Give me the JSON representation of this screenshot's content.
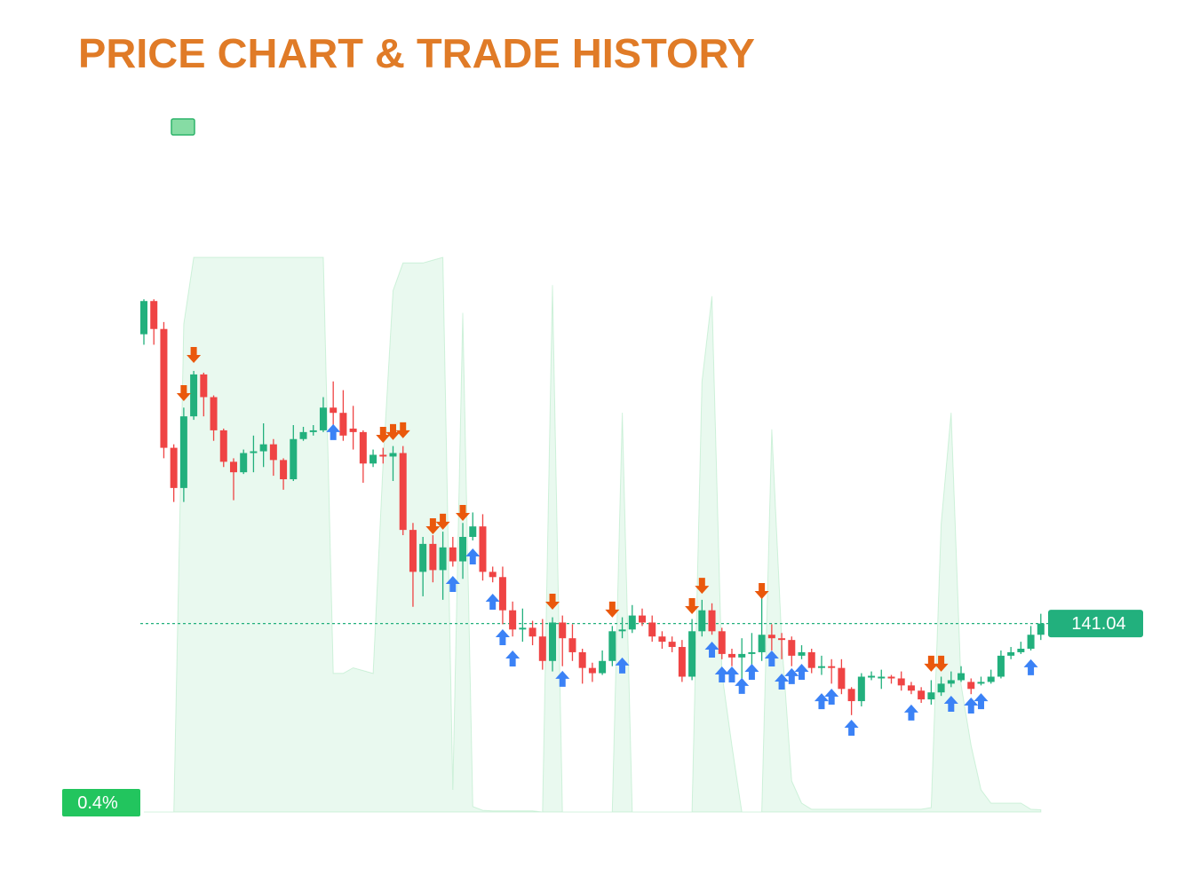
{
  "chart_data": {
    "type": "candlestick",
    "title": "PRICE CHART & TRADE HISTORY",
    "up_color": "#22b07d",
    "down_color": "#ef4444",
    "ylim": [
      130,
      162
    ],
    "y2lim": [
      0,
      100
    ],
    "open": [
      157.6,
      159.5,
      157.9,
      151.1,
      148.8,
      152.9,
      155.3,
      154.0,
      152.1,
      150.3,
      149.7,
      150.8,
      150.9,
      151.3,
      150.4,
      149.3,
      151.6,
      152.0,
      152.1,
      153.4,
      153.1,
      152.2,
      152.0,
      150.2,
      150.7,
      150.6,
      150.8,
      146.4,
      144.0,
      145.6,
      144.1,
      145.4,
      144.6,
      146.0,
      146.6,
      144.0,
      143.7,
      141.8,
      140.7,
      140.8,
      140.3,
      138.9,
      141.1,
      140.2,
      139.4,
      138.5,
      138.2,
      138.9,
      140.6,
      140.7,
      141.5,
      141.1,
      140.3,
      140.0,
      139.7,
      138.0,
      140.6,
      141.8,
      140.6,
      139.3,
      139.1,
      139.3,
      139.4,
      140.4,
      140.2,
      140.1,
      139.2,
      139.4,
      138.5,
      138.6,
      138.5,
      137.3,
      136.6,
      137.95,
      137.9,
      138.0,
      137.9,
      137.5,
      137.2,
      136.7,
      137.1,
      137.6,
      137.8,
      137.7,
      137.6,
      137.7,
      138.0,
      139.2,
      139.4,
      139.6,
      140.4
    ],
    "high": [
      159.6,
      159.6,
      158.3,
      151.3,
      153.4,
      155.5,
      155.4,
      154.1,
      152.2,
      150.5,
      151.0,
      151.8,
      152.5,
      151.6,
      150.5,
      152.4,
      152.3,
      152.4,
      154.0,
      154.9,
      154.4,
      153.5,
      152.1,
      151.0,
      151.1,
      151.2,
      151.2,
      146.8,
      146.0,
      146.1,
      146.3,
      146.0,
      146.8,
      147.4,
      147.3,
      144.3,
      144.3,
      142.3,
      141.9,
      141.2,
      141.3,
      141.4,
      141.5,
      141.0,
      139.6,
      138.8,
      139.5,
      140.9,
      141.4,
      142.1,
      141.9,
      141.5,
      140.6,
      140.3,
      140.1,
      141.3,
      142.4,
      142.2,
      140.8,
      139.6,
      140.2,
      140.5,
      143.0,
      141.0,
      140.5,
      140.3,
      139.8,
      139.6,
      139.2,
      139.0,
      139.0,
      137.4,
      138.2,
      138.3,
      138.4,
      138.1,
      138.3,
      137.7,
      137.4,
      137.8,
      138.0,
      138.3,
      138.6,
      137.9,
      138.0,
      138.4,
      139.5,
      139.7,
      140.0,
      140.9,
      141.6
    ],
    "low": [
      157.0,
      157.0,
      150.5,
      148.0,
      148.0,
      152.7,
      152.9,
      151.5,
      150.0,
      148.1,
      149.6,
      149.7,
      150.0,
      149.5,
      148.7,
      149.2,
      151.5,
      151.8,
      152.0,
      152.2,
      151.5,
      151.0,
      149.1,
      150.0,
      150.2,
      149.2,
      146.1,
      142.0,
      142.6,
      143.4,
      142.4,
      144.3,
      143.6,
      145.8,
      143.5,
      143.4,
      141.0,
      140.3,
      140.0,
      139.8,
      138.4,
      138.3,
      138.6,
      138.9,
      137.6,
      137.7,
      138.1,
      138.6,
      140.2,
      140.5,
      140.9,
      140.0,
      139.6,
      139.4,
      137.7,
      137.8,
      140.3,
      140.4,
      139.0,
      138.6,
      137.9,
      138.4,
      138.9,
      139.5,
      139.0,
      138.6,
      139.0,
      138.2,
      138.1,
      137.6,
      137.0,
      135.8,
      136.3,
      137.8,
      137.3,
      137.6,
      137.2,
      137.0,
      136.5,
      136.4,
      136.9,
      137.4,
      137.7,
      137.0,
      137.5,
      137.6,
      137.9,
      139.0,
      139.3,
      139.5,
      140.1
    ],
    "close": [
      159.5,
      157.9,
      151.1,
      148.8,
      152.9,
      155.3,
      154.0,
      152.1,
      150.3,
      149.7,
      150.8,
      150.9,
      151.3,
      150.4,
      149.3,
      151.6,
      152.0,
      152.1,
      153.4,
      153.1,
      151.8,
      152.0,
      150.2,
      150.7,
      150.6,
      150.8,
      146.4,
      144.0,
      145.6,
      144.1,
      145.4,
      144.6,
      146.0,
      146.6,
      144.0,
      143.7,
      141.8,
      140.7,
      140.8,
      140.3,
      138.9,
      141.1,
      140.2,
      139.4,
      138.5,
      138.2,
      138.9,
      140.6,
      140.7,
      141.5,
      141.1,
      140.3,
      140.0,
      139.7,
      138.0,
      140.6,
      141.8,
      140.6,
      139.3,
      139.1,
      139.3,
      139.4,
      140.4,
      140.2,
      140.1,
      139.2,
      139.4,
      138.5,
      138.6,
      138.5,
      137.3,
      136.6,
      138.0,
      138.05,
      138.0,
      137.9,
      137.5,
      137.2,
      136.7,
      137.1,
      137.6,
      137.8,
      138.2,
      137.3,
      137.7,
      138.0,
      139.2,
      139.4,
      139.6,
      140.4,
      141.04
    ],
    "area": {
      "axis": "y2",
      "color": "#86dca4",
      "values": [
        0,
        0,
        0,
        0,
        88,
        100,
        100,
        100,
        100,
        100,
        100,
        100,
        100,
        100,
        100,
        100,
        100,
        100,
        100,
        25,
        25,
        26,
        25.5,
        25,
        63,
        94,
        99,
        99,
        99,
        99.5,
        100,
        4,
        90,
        1,
        0.3,
        0.2,
        0.2,
        0.2,
        0.2,
        0.2,
        0,
        95,
        0,
        0,
        0,
        0,
        0,
        0,
        72,
        0,
        0,
        0,
        0,
        0,
        0,
        0,
        77.6,
        93,
        25,
        12,
        0,
        0,
        0,
        69,
        31,
        5.6,
        1.6,
        0.5,
        0.5,
        0.5,
        0.5,
        0.5,
        0.5,
        0.5,
        0.5,
        0.5,
        0.5,
        0.5,
        0.5,
        0.8,
        52,
        72,
        23,
        12,
        4,
        1.6,
        1.6,
        1.6,
        1.6,
        0.5,
        0.4
      ],
      "value_labels": [
        null,
        null,
        null,
        null,
        null,
        null,
        null,
        null,
        null,
        null,
        null,
        null,
        null,
        null,
        null,
        null,
        null,
        null,
        null,
        null,
        null,
        null,
        null,
        null,
        null,
        null,
        null,
        null,
        null,
        null,
        null,
        null,
        null,
        null,
        null,
        null,
        null,
        null,
        null,
        null,
        null,
        null,
        null,
        null,
        null,
        null,
        null,
        null,
        null,
        null,
        null,
        null,
        null,
        null,
        null,
        null,
        null,
        null,
        null,
        null,
        null,
        null,
        null,
        null,
        null,
        null,
        null,
        null,
        null,
        null,
        null,
        null,
        null,
        null,
        null,
        null,
        null,
        null,
        null,
        null,
        null,
        null,
        null,
        null,
        null,
        null,
        null,
        null,
        null,
        null,
        "0.4%"
      ]
    },
    "buys": {
      "color": "#3b82f6",
      "index": [
        19,
        31,
        33,
        35,
        36,
        37,
        42,
        48,
        57,
        58,
        59,
        60,
        61,
        63,
        64,
        65,
        66,
        68,
        69,
        71,
        77,
        81,
        83,
        84,
        89
      ],
      "price": [
        152.0,
        143.31,
        144.88,
        142.29,
        140.26,
        139.04,
        137.88,
        138.64,
        139.55,
        138.13,
        138.13,
        137.47,
        138.28,
        139.04,
        137.72,
        138.03,
        138.28,
        136.6,
        136.86,
        135.08,
        135.95,
        136.45,
        136.35,
        136.6,
        138.54
      ]
    },
    "sells": {
      "color": "#ea580c",
      "index": [
        4,
        5,
        24,
        25,
        26,
        29,
        30,
        32,
        41,
        47,
        55,
        56,
        62,
        79,
        80
      ],
      "price": [
        154.23,
        156.41,
        151.84,
        152.0,
        152.1,
        146.61,
        146.87,
        147.37,
        142.29,
        141.84,
        142.04,
        143.2,
        142.9,
        138.74,
        138.74
      ]
    }
  }
}
